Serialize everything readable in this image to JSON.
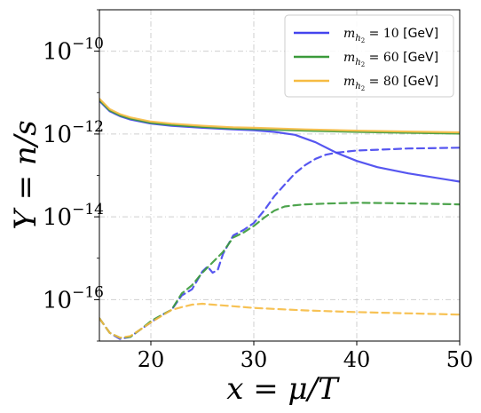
{
  "chart_data": {
    "type": "line",
    "xlabel": "x = μ/T",
    "ylabel": "Y = n/s",
    "xlim": [
      15,
      50
    ],
    "ylim_log10": [
      -17,
      -9
    ],
    "yscale": "log",
    "grid": true,
    "legend_placement": "top-right",
    "x_ticks": [
      {
        "value": 20,
        "label": "20"
      },
      {
        "value": 30,
        "label": "30"
      },
      {
        "value": 40,
        "label": "40"
      },
      {
        "value": 50,
        "label": "50"
      }
    ],
    "y_ticks": [
      {
        "exp": -10,
        "base": "10",
        "sup": "−10"
      },
      {
        "exp": -12,
        "base": "10",
        "sup": "−12"
      },
      {
        "exp": -14,
        "base": "10",
        "sup": "−14"
      },
      {
        "exp": -16,
        "base": "10",
        "sup": "−16"
      }
    ],
    "series": [
      {
        "name_main": "m",
        "name_sub": "h",
        "name_subsub": "2",
        "name_value": " = 10 ",
        "name_unit": "[GeV]",
        "color": "#4444ee",
        "solid": {
          "x": [
            15,
            16,
            17,
            18,
            20,
            22,
            25,
            28,
            30,
            32,
            34,
            36,
            38,
            40,
            42,
            45,
            50
          ],
          "log10y": [
            -11.2,
            -11.45,
            -11.57,
            -11.65,
            -11.75,
            -11.8,
            -11.85,
            -11.89,
            -11.91,
            -11.95,
            -12.02,
            -12.2,
            -12.45,
            -12.65,
            -12.8,
            -12.95,
            -13.15
          ]
        },
        "dashed": {
          "x": [
            15,
            16,
            17,
            18,
            19,
            20,
            21,
            22,
            23,
            24,
            25,
            25.5,
            26,
            26.5,
            27,
            28,
            29,
            30,
            31,
            32,
            33,
            34,
            35,
            36,
            37,
            38,
            40,
            42,
            45,
            50
          ],
          "log10y": [
            -16.45,
            -16.8,
            -16.95,
            -16.9,
            -16.72,
            -16.55,
            -16.38,
            -16.25,
            -15.9,
            -15.75,
            -15.32,
            -15.2,
            -15.35,
            -15.28,
            -14.9,
            -14.45,
            -14.32,
            -14.15,
            -13.85,
            -13.5,
            -13.22,
            -12.95,
            -12.75,
            -12.6,
            -12.5,
            -12.45,
            -12.4,
            -12.38,
            -12.35,
            -12.33
          ]
        }
      },
      {
        "name_main": "m",
        "name_sub": "h",
        "name_subsub": "2",
        "name_value": " = 60 ",
        "name_unit": "[GeV]",
        "color": "#3a9a3a",
        "solid": {
          "x": [
            15,
            16,
            17,
            18,
            20,
            22,
            25,
            28,
            30,
            35,
            40,
            45,
            50
          ],
          "log10y": [
            -11.18,
            -11.43,
            -11.55,
            -11.63,
            -11.73,
            -11.78,
            -11.83,
            -11.87,
            -11.88,
            -11.92,
            -11.95,
            -11.97,
            -11.99
          ]
        },
        "dashed": {
          "x": [
            15,
            16,
            17,
            18,
            19,
            20,
            21,
            22,
            23,
            24,
            25,
            26,
            27,
            28,
            29,
            30,
            31,
            32,
            33,
            34,
            35,
            37,
            40,
            43,
            46,
            50
          ],
          "log10y": [
            -16.45,
            -16.8,
            -16.92,
            -16.9,
            -16.72,
            -16.52,
            -16.38,
            -16.25,
            -15.85,
            -15.65,
            -15.35,
            -15.1,
            -14.85,
            -14.5,
            -14.38,
            -14.22,
            -14.02,
            -13.85,
            -13.75,
            -13.72,
            -13.7,
            -13.68,
            -13.66,
            -13.67,
            -13.68,
            -13.7
          ]
        }
      },
      {
        "name_main": "m",
        "name_sub": "h",
        "name_subsub": "2",
        "name_value": " = 80 ",
        "name_unit": "[GeV]",
        "color": "#f6bb42",
        "solid": {
          "x": [
            15,
            16,
            17,
            18,
            20,
            22,
            25,
            28,
            30,
            35,
            40,
            45,
            50
          ],
          "log10y": [
            -11.15,
            -11.4,
            -11.52,
            -11.6,
            -11.7,
            -11.75,
            -11.8,
            -11.84,
            -11.85,
            -11.89,
            -11.92,
            -11.94,
            -11.96
          ]
        },
        "dashed": {
          "x": [
            15,
            16,
            17,
            18,
            19,
            20,
            21,
            22,
            23,
            24,
            25,
            26,
            28,
            30,
            35,
            40,
            45,
            50
          ],
          "log10y": [
            -16.45,
            -16.8,
            -16.92,
            -16.88,
            -16.72,
            -16.55,
            -16.4,
            -16.25,
            -16.18,
            -16.12,
            -16.1,
            -16.12,
            -16.16,
            -16.2,
            -16.26,
            -16.3,
            -16.33,
            -16.36
          ]
        }
      }
    ]
  }
}
